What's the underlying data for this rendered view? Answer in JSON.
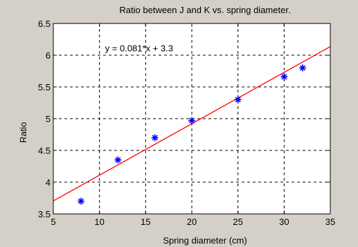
{
  "chart_data": {
    "type": "scatter",
    "title": "Ratio between J and K vs. spring diameter.",
    "xlabel": "Spring diameter (cm)",
    "ylabel": "Ratio",
    "xlim": [
      5,
      35
    ],
    "ylim": [
      3.5,
      6.5
    ],
    "xticks": [
      5,
      10,
      15,
      20,
      25,
      30,
      35
    ],
    "yticks": [
      3.5,
      4,
      4.5,
      5,
      5.5,
      6,
      6.5
    ],
    "grid": true,
    "series": [
      {
        "marker": "star",
        "color": "#0000ff",
        "x": [
          8,
          12,
          16,
          20,
          25,
          30,
          32
        ],
        "y": [
          3.7,
          4.35,
          4.7,
          4.97,
          5.3,
          5.66,
          5.8
        ]
      }
    ],
    "fit_line": {
      "slope": 0.081,
      "intercept": 3.3,
      "color": "#ff0000"
    },
    "annotation": "y = 0.081*x + 3.3"
  }
}
